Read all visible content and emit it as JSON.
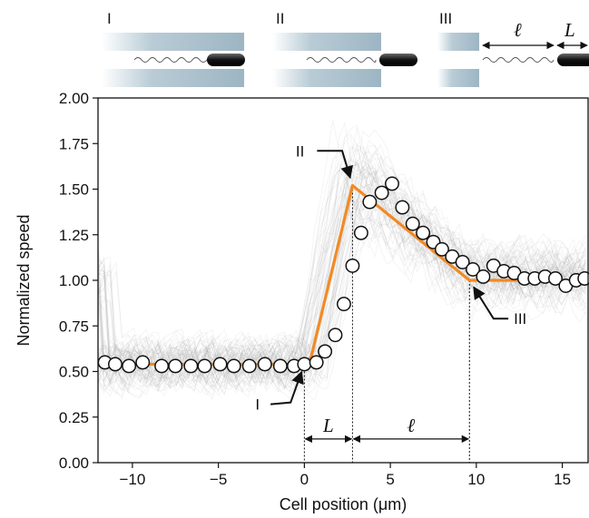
{
  "chart_data": {
    "type": "line",
    "xlabel": "Cell position (μm)",
    "ylabel": "Normalized speed",
    "xlim": [
      -12,
      16.5
    ],
    "ylim": [
      0,
      2
    ],
    "xticks": [
      -10,
      -5,
      0,
      5,
      10,
      15
    ],
    "xtick_labels": [
      "−10",
      "−5",
      "0",
      "5",
      "10",
      "15"
    ],
    "yticks": [
      0,
      0.25,
      0.5,
      0.75,
      1.0,
      1.25,
      1.5,
      1.75,
      2.0
    ],
    "ytick_labels": [
      "0.00",
      "0.25",
      "0.50",
      "0.75",
      "1.00",
      "1.25",
      "1.50",
      "1.75",
      "2.00"
    ],
    "grid": false,
    "colors": {
      "model": "#f28a24",
      "traces": "#9a9a9a",
      "markers_fill": "#ffffff",
      "markers_edge": "#111111"
    },
    "series": [
      {
        "kind": "markers",
        "x": [
          -11.6,
          -11.0,
          -10.2,
          -9.4,
          -8.3,
          -7.5,
          -6.6,
          -5.8,
          -4.9,
          -4.1,
          -3.2,
          -2.3,
          -1.4,
          -0.6,
          0.0,
          0.7,
          1.2,
          1.8,
          2.3,
          2.8,
          3.3,
          3.8,
          4.5,
          5.1,
          5.7,
          6.3,
          6.9,
          7.5,
          8.0,
          8.6,
          9.2,
          9.8,
          10.4,
          11.0,
          11.6,
          12.2,
          12.8,
          13.4,
          14.0,
          14.6,
          15.2,
          15.8,
          16.3
        ],
        "y": [
          0.55,
          0.54,
          0.53,
          0.55,
          0.53,
          0.53,
          0.53,
          0.53,
          0.54,
          0.53,
          0.53,
          0.54,
          0.53,
          0.53,
          0.54,
          0.55,
          0.61,
          0.7,
          0.87,
          1.08,
          1.26,
          1.43,
          1.48,
          1.53,
          1.4,
          1.31,
          1.26,
          1.21,
          1.17,
          1.13,
          1.1,
          1.06,
          1.02,
          1.08,
          1.05,
          1.04,
          1.01,
          1.01,
          1.02,
          1.01,
          0.97,
          1.0,
          1.01
        ]
      },
      {
        "kind": "piecewise-linear",
        "x": [
          -12,
          0.0,
          0.4,
          2.8,
          9.6,
          16.5
        ],
        "y": [
          0.54,
          0.54,
          0.58,
          1.52,
          1.0,
          1.0
        ]
      }
    ],
    "annotations": [
      {
        "label": "I",
        "x": 0.0,
        "y": 0.54
      },
      {
        "label": "II",
        "x": 2.8,
        "y": 1.52
      },
      {
        "label": "III",
        "x": 9.6,
        "y": 1.0
      }
    ],
    "spans": [
      {
        "label": "L",
        "from": 0.0,
        "to": 2.8,
        "y": 0.13
      },
      {
        "label": "ℓ",
        "from": 2.8,
        "to": 9.6,
        "y": 0.13
      }
    ],
    "schematic": {
      "panels": [
        "I",
        "II",
        "III"
      ],
      "length_labels": [
        "ℓ",
        "L"
      ]
    }
  }
}
